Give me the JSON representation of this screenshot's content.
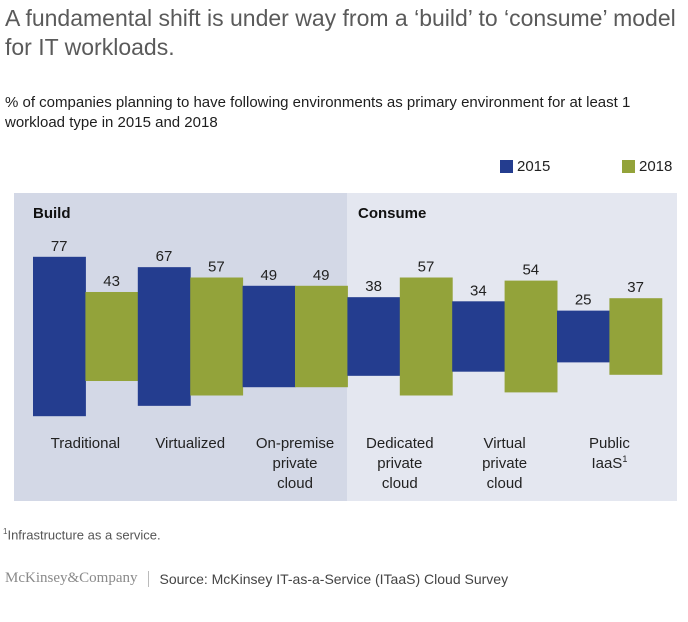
{
  "header": {
    "title": "A fundamental shift is under way from a ‘build’ to ‘consume’ model for IT workloads.",
    "subtitle": "% of companies planning to have following environments as primary environment for at least 1 workload type in 2015 and 2018"
  },
  "colors": {
    "series_2015": "#243d8f",
    "series_2018": "#93a33a",
    "panel_build": "#d3d8e6",
    "panel_consume": "#e4e7f0"
  },
  "chart_data": {
    "type": "bar",
    "subtype": "centered-grouped-bar",
    "title": "A fundamental shift is under way from a ‘build’ to ‘consume’ model for IT workloads.",
    "subtitle": "% of companies planning to have following environments as primary environment for at least 1 workload type in 2015 and 2018",
    "xlabel": "",
    "ylabel": "%",
    "ylim": [
      0,
      100
    ],
    "grid": false,
    "legend_position": "top-right",
    "groups": [
      {
        "name": "Build",
        "categories": [
          0,
          1,
          2
        ]
      },
      {
        "name": "Consume",
        "categories": [
          3,
          4,
          5
        ]
      }
    ],
    "categories": [
      {
        "lines": [
          "Traditional"
        ],
        "sup": ""
      },
      {
        "lines": [
          "Virtualized"
        ],
        "sup": ""
      },
      {
        "lines": [
          "On-premise",
          "private",
          "cloud"
        ],
        "sup": ""
      },
      {
        "lines": [
          "Dedicated",
          "private",
          "cloud"
        ],
        "sup": ""
      },
      {
        "lines": [
          "Virtual",
          "private",
          "cloud"
        ],
        "sup": ""
      },
      {
        "lines": [
          "Public",
          "IaaS"
        ],
        "sup": "1"
      }
    ],
    "series": [
      {
        "name": "2015",
        "color": "#243d8f",
        "values": [
          77,
          67,
          49,
          38,
          34,
          25
        ]
      },
      {
        "name": "2018",
        "color": "#93a33a",
        "values": [
          43,
          57,
          49,
          57,
          54,
          37
        ]
      }
    ]
  },
  "footnote": {
    "marker": "1",
    "text": "Infrastructure as a service."
  },
  "footer": {
    "brand": "McKinsey&Company",
    "source": "Source: McKinsey IT-as-a-Service (ITaaS) Cloud Survey"
  }
}
